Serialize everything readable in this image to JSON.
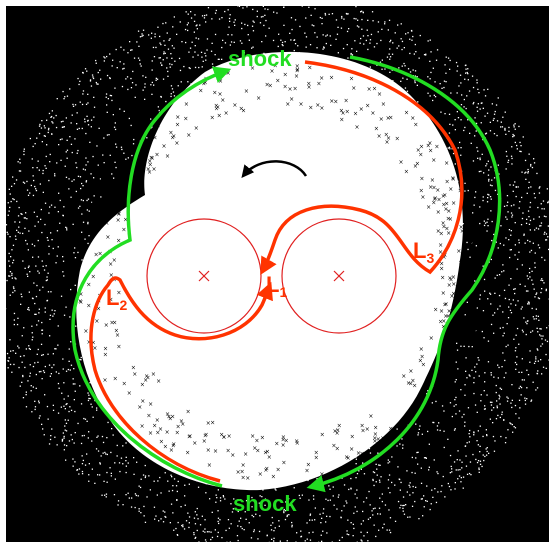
{
  "labels": {
    "shock_top": "shock",
    "shock_bottom": "shock",
    "L1": {
      "letter": "L",
      "sub": "1"
    },
    "L2": {
      "letter": "L",
      "sub": "2"
    },
    "L3": {
      "letter": "L",
      "sub": "3"
    }
  },
  "colors": {
    "background": "#000000",
    "disk": "#ffffff",
    "particles": "#000000",
    "shock_line": "#22dd22",
    "stream_line": "#ff3300",
    "roche_lobe": "#e02020",
    "rotation_arrow": "#000000"
  },
  "icons": {
    "rotation": "counter-clockwise-arrow-icon",
    "star_center": "cross-marker-icon"
  }
}
